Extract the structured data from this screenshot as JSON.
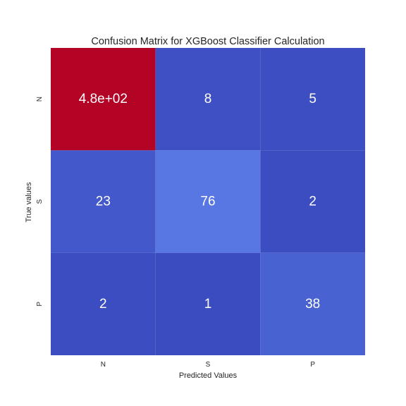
{
  "chart_data": {
    "type": "heatmap",
    "title": "Confusion Matrix for XGBoost Classifier Calculation",
    "xlabel": "Predicted Values",
    "ylabel": "True values",
    "x_categories": [
      "N",
      "S",
      "P"
    ],
    "y_categories": [
      "N",
      "S",
      "P"
    ],
    "values": [
      [
        480,
        8,
        5
      ],
      [
        23,
        76,
        2
      ],
      [
        2,
        1,
        38
      ]
    ],
    "cell_labels": [
      [
        "4.8e+02",
        "8",
        "5"
      ],
      [
        "23",
        "76",
        "2"
      ],
      [
        "2",
        "1",
        "38"
      ]
    ],
    "colormap": "coolwarm",
    "color_range": [
      1,
      480
    ],
    "colors": {
      "low": "#3b4cc0",
      "mid": "#dddcdc",
      "high": "#b40426",
      "text": "#ffffff"
    },
    "colorbar": false,
    "grid": false
  }
}
